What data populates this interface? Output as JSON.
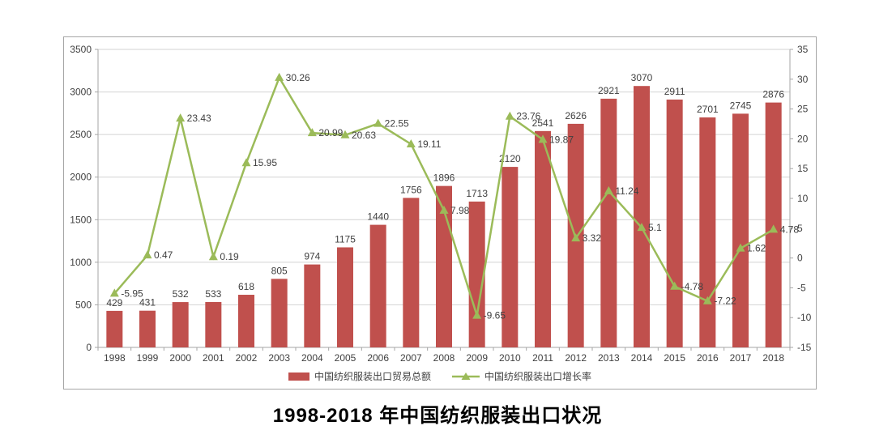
{
  "page": {
    "title": "1998-2018 年中国纺织服装出口状况"
  },
  "legend": {
    "bar_label": "中国纺织服装出口贸易总额",
    "line_label": "中国纺织服装出口增长率"
  },
  "colors": {
    "bar": "#c0504d",
    "line": "#9bbb59",
    "grid": "#d3d3d3",
    "axis": "#a6a6a6",
    "text": "#404040",
    "frame_border": "#a6a6a6",
    "background": "#ffffff"
  },
  "chart_data": {
    "type": "bar",
    "subtype": "bar+line combo, dual axis",
    "title": "1998-2018 年中国纺织服装出口状况",
    "categories": [
      "1998",
      "1999",
      "2000",
      "2001",
      "2002",
      "2003",
      "2004",
      "2005",
      "2006",
      "2007",
      "2008",
      "2009",
      "2010",
      "2011",
      "2012",
      "2013",
      "2014",
      "2015",
      "2016",
      "2017",
      "2018"
    ],
    "series": [
      {
        "name": "中国纺织服装出口贸易总额",
        "type": "bar",
        "axis": "left",
        "color": "#c0504d",
        "values": [
          429,
          431,
          532,
          533,
          618,
          805,
          974,
          1175,
          1440,
          1756,
          1896,
          1713,
          2120,
          2541,
          2626,
          2921,
          3070,
          2911,
          2701,
          2745,
          2876
        ]
      },
      {
        "name": "中国纺织服装出口增长率",
        "type": "line",
        "axis": "right",
        "color": "#9bbb59",
        "marker": "triangle",
        "values": [
          -5.95,
          0.47,
          23.43,
          0.19,
          15.95,
          30.26,
          20.99,
          20.63,
          22.55,
          19.11,
          7.98,
          -9.65,
          23.76,
          19.87,
          3.32,
          11.24,
          5.1,
          -4.78,
          -7.22,
          1.62,
          4.78
        ]
      }
    ],
    "left_axis": {
      "min": 0,
      "max": 3500,
      "step": 500,
      "tick_labels": [
        "3500",
        "3000",
        "2500",
        "2000",
        "1500",
        "1000",
        "500",
        "0"
      ]
    },
    "right_axis": {
      "min": -15,
      "max": 35,
      "step": 5,
      "tick_labels": [
        "35",
        "30",
        "25",
        "20",
        "15",
        "10",
        "5",
        "0",
        "-5",
        "-10",
        "-15"
      ]
    },
    "grid": true,
    "data_labels": true,
    "legend_position": "bottom"
  }
}
